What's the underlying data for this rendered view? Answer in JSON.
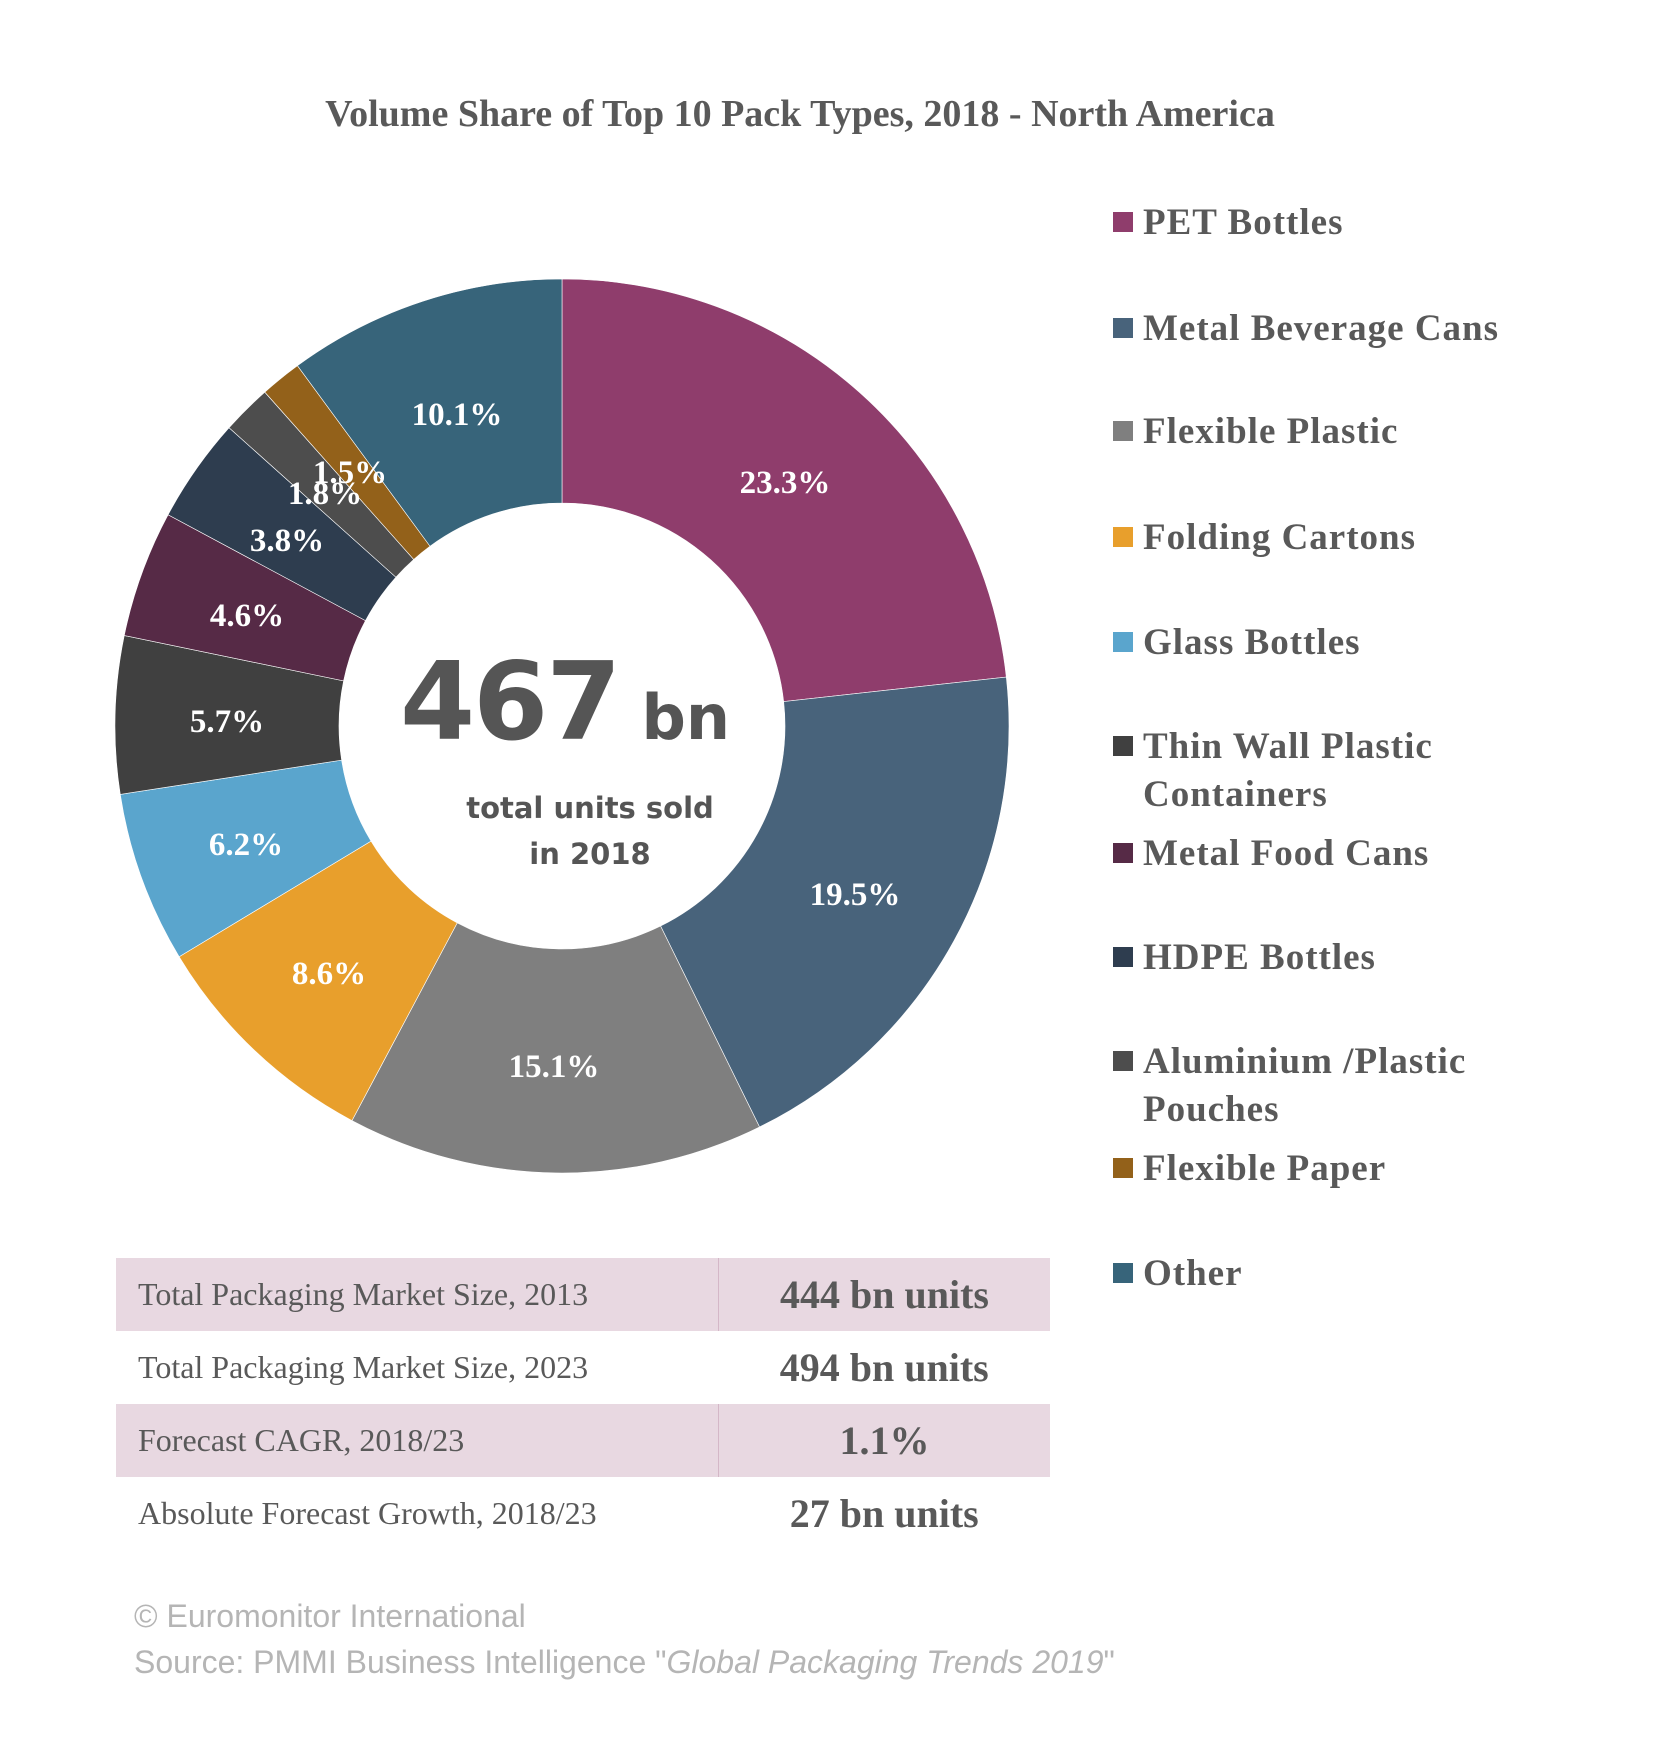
{
  "chart_data": {
    "type": "pie",
    "variant": "donut",
    "title": "Volume Share of Top 10 Pack Types, 2018 - North America",
    "center": {
      "value": "467",
      "unit": "bn",
      "caption_line1": "total units sold",
      "caption_line2": "in 2018"
    },
    "legend_position": "right",
    "slices": [
      {
        "name": "PET Bottles",
        "value": 23.3,
        "label": "23.3%",
        "color": "#8f3d6c"
      },
      {
        "name": "Metal Beverage Cans",
        "value": 19.5,
        "label": "19.5%",
        "color": "#48637b"
      },
      {
        "name": "Flexible Plastic",
        "value": 15.1,
        "label": "15.1%",
        "color": "#7f7f7f"
      },
      {
        "name": "Folding Cartons",
        "value": 8.6,
        "label": "8.6%",
        "color": "#e89f2c"
      },
      {
        "name": "Glass Bottles",
        "value": 6.2,
        "label": "6.2%",
        "color": "#5aa5cd"
      },
      {
        "name": "Thin Wall Plastic Containers",
        "value": 5.7,
        "label": "5.7%",
        "color": "#404040"
      },
      {
        "name": "Metal Food Cans",
        "value": 4.6,
        "label": "4.6%",
        "color": "#562a46"
      },
      {
        "name": "HDPE Bottles",
        "value": 3.8,
        "label": "3.8%",
        "color": "#2e3d4f"
      },
      {
        "name": "Aluminium /Plastic Pouches",
        "value": 1.8,
        "label": "1.8%",
        "color": "#4d4d4d"
      },
      {
        "name": "Flexible Paper",
        "value": 1.5,
        "label": "1.5%",
        "color": "#93611a"
      },
      {
        "name": "Other",
        "value": 10.1,
        "label": "10.1%",
        "color": "#37647a"
      }
    ]
  },
  "stats_table": [
    {
      "label": "Total Packaging Market Size, 2013",
      "value": "444 bn units"
    },
    {
      "label": "Total Packaging Market Size, 2023",
      "value": "494 bn units"
    },
    {
      "label": "Forecast CAGR, 2018/23",
      "value": "1.1%"
    },
    {
      "label": "Absolute Forecast Growth, 2018/23",
      "value": "27 bn units"
    }
  ],
  "footer": {
    "copyright": "© Euromonitor International",
    "source_prefix": "Source: PMMI Business Intelligence \"",
    "source_title": "Global Packaging Trends 2019",
    "source_suffix": "\""
  }
}
